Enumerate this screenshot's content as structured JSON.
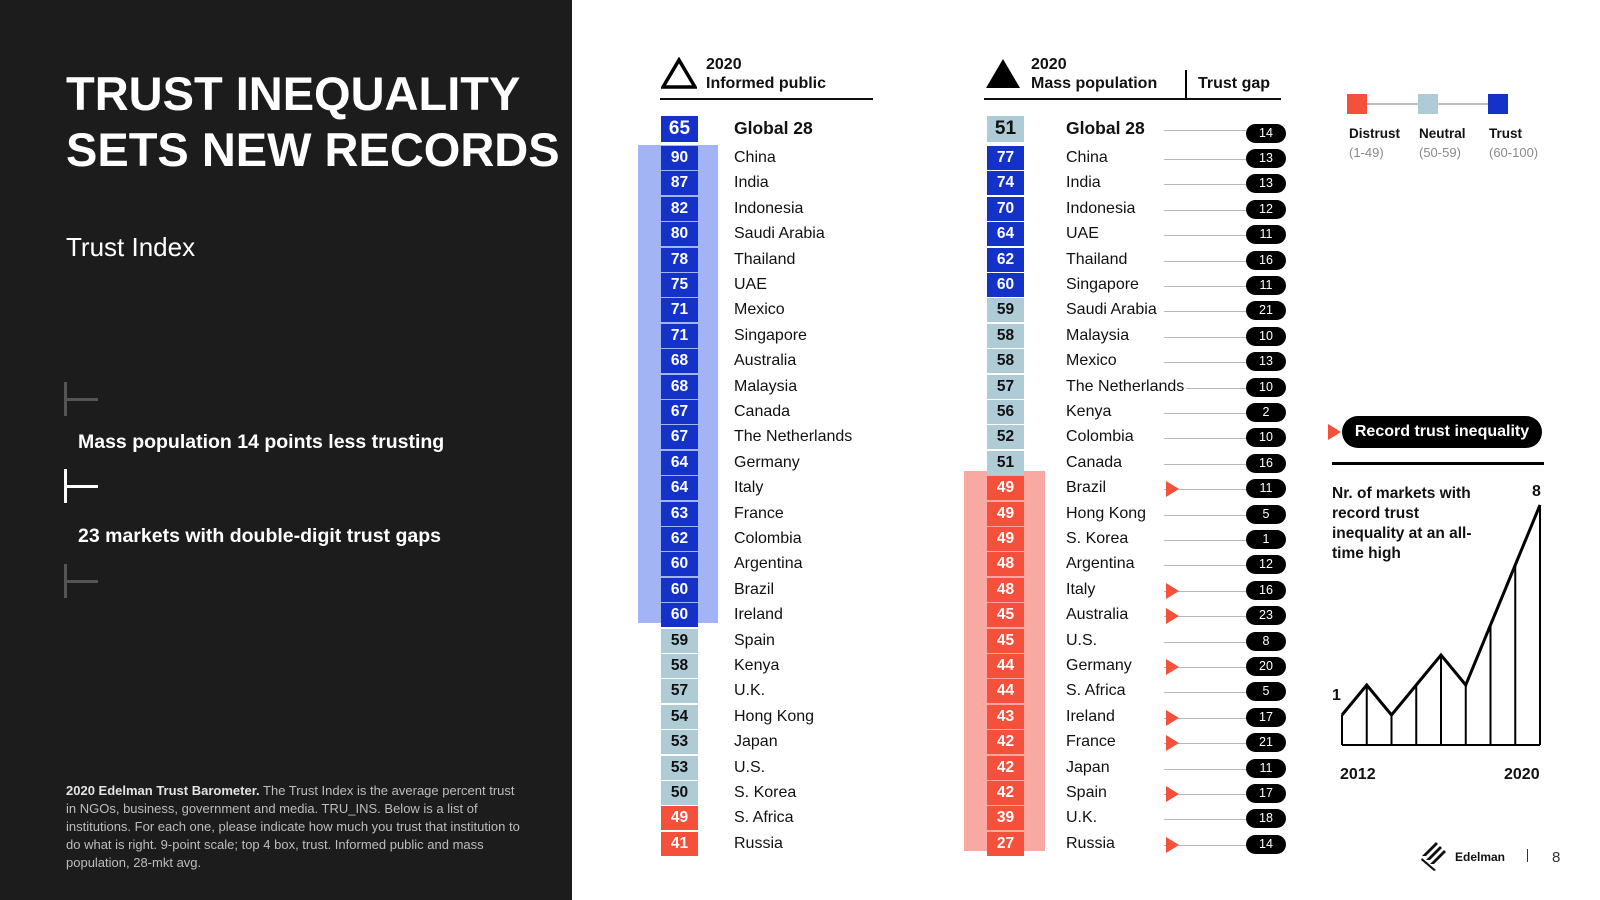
{
  "slide": {
    "title": "TRUST INEQUALITY SETS NEW RECORDS",
    "subtitle": "Trust Index",
    "stat1": "Mass population 14 points less trusting",
    "stat2": "23 markets with double-digit trust gaps",
    "footnote_bold": "2020 Edelman Trust Barometer.",
    "footnote_text": " The Trust Index is the average percent trust in NGOs, business, government and media. TRU_INS. Below is a list of institutions. For each one, please indicate how much you trust that institution to do what is right. 9-point scale; top 4 box, trust. Informed public and mass population, 28-mkt avg.",
    "brand": "Edelman",
    "page_number": "8"
  },
  "colors": {
    "distrust": "#f4503b",
    "neutral": "#aecbd6",
    "trust": "#1432c8",
    "trust_band": "#a3b4f5",
    "distrust_band": "#f8aaa2"
  },
  "legend": {
    "items": [
      {
        "label": "Distrust",
        "range": "(1-49)",
        "color": "#f4503b"
      },
      {
        "label": "Neutral",
        "range": "(50-59)",
        "color": "#aecbd6"
      },
      {
        "label": "Trust",
        "range": "(60-100)",
        "color": "#1432c8"
      }
    ]
  },
  "informed": {
    "year": "2020",
    "label": "Informed public",
    "global": {
      "name": "Global 28",
      "score": 65
    },
    "rows": [
      {
        "name": "China",
        "score": 90
      },
      {
        "name": "India",
        "score": 87
      },
      {
        "name": "Indonesia",
        "score": 82
      },
      {
        "name": "Saudi Arabia",
        "score": 80
      },
      {
        "name": "Thailand",
        "score": 78
      },
      {
        "name": "UAE",
        "score": 75
      },
      {
        "name": "Mexico",
        "score": 71
      },
      {
        "name": "Singapore",
        "score": 71
      },
      {
        "name": "Australia",
        "score": 68
      },
      {
        "name": "Malaysia",
        "score": 68
      },
      {
        "name": "Canada",
        "score": 67
      },
      {
        "name": "The Netherlands",
        "score": 67
      },
      {
        "name": "Germany",
        "score": 64
      },
      {
        "name": "Italy",
        "score": 64
      },
      {
        "name": "France",
        "score": 63
      },
      {
        "name": "Colombia",
        "score": 62
      },
      {
        "name": "Argentina",
        "score": 60
      },
      {
        "name": "Brazil",
        "score": 60
      },
      {
        "name": "Ireland",
        "score": 60
      },
      {
        "name": "Spain",
        "score": 59
      },
      {
        "name": "Kenya",
        "score": 58
      },
      {
        "name": "U.K.",
        "score": 57
      },
      {
        "name": "Hong Kong",
        "score": 54
      },
      {
        "name": "Japan",
        "score": 53
      },
      {
        "name": "U.S.",
        "score": 53
      },
      {
        "name": "S. Korea",
        "score": 50
      },
      {
        "name": "S. Africa",
        "score": 49
      },
      {
        "name": "Russia",
        "score": 41
      }
    ]
  },
  "mass": {
    "year": "2020",
    "label": "Mass population",
    "gap_label": "Trust gap",
    "global": {
      "name": "Global 28",
      "score": 51,
      "gap": 14
    },
    "rows": [
      {
        "name": "China",
        "score": 77,
        "gap": 13,
        "record": false
      },
      {
        "name": "India",
        "score": 74,
        "gap": 13,
        "record": false
      },
      {
        "name": "Indonesia",
        "score": 70,
        "gap": 12,
        "record": false
      },
      {
        "name": "UAE",
        "score": 64,
        "gap": 11,
        "record": false
      },
      {
        "name": "Thailand",
        "score": 62,
        "gap": 16,
        "record": false
      },
      {
        "name": "Singapore",
        "score": 60,
        "gap": 11,
        "record": false
      },
      {
        "name": "Saudi Arabia",
        "score": 59,
        "gap": 21,
        "record": false
      },
      {
        "name": "Malaysia",
        "score": 58,
        "gap": 10,
        "record": false
      },
      {
        "name": "Mexico",
        "score": 58,
        "gap": 13,
        "record": false
      },
      {
        "name": "The Netherlands",
        "score": 57,
        "gap": 10,
        "record": false
      },
      {
        "name": "Kenya",
        "score": 56,
        "gap": 2,
        "record": false
      },
      {
        "name": "Colombia",
        "score": 52,
        "gap": 10,
        "record": false
      },
      {
        "name": "Canada",
        "score": 51,
        "gap": 16,
        "record": false
      },
      {
        "name": "Brazil",
        "score": 49,
        "gap": 11,
        "record": true
      },
      {
        "name": "Hong Kong",
        "score": 49,
        "gap": 5,
        "record": false
      },
      {
        "name": "S. Korea",
        "score": 49,
        "gap": 1,
        "record": false
      },
      {
        "name": "Argentina",
        "score": 48,
        "gap": 12,
        "record": false
      },
      {
        "name": "Italy",
        "score": 48,
        "gap": 16,
        "record": true
      },
      {
        "name": "Australia",
        "score": 45,
        "gap": 23,
        "record": true
      },
      {
        "name": "U.S.",
        "score": 45,
        "gap": 8,
        "record": false
      },
      {
        "name": "Germany",
        "score": 44,
        "gap": 20,
        "record": true
      },
      {
        "name": "S. Africa",
        "score": 44,
        "gap": 5,
        "record": false
      },
      {
        "name": "Ireland",
        "score": 43,
        "gap": 17,
        "record": true
      },
      {
        "name": "France",
        "score": 42,
        "gap": 21,
        "record": true
      },
      {
        "name": "Japan",
        "score": 42,
        "gap": 11,
        "record": false
      },
      {
        "name": "Spain",
        "score": 42,
        "gap": 17,
        "record": true
      },
      {
        "name": "U.K.",
        "score": 39,
        "gap": 18,
        "record": false
      },
      {
        "name": "Russia",
        "score": 27,
        "gap": 14,
        "record": true
      }
    ]
  },
  "record": {
    "label": "Record trust inequality",
    "description": "Nr. of markets with record trust inequality at an all-time high"
  },
  "chart_data": {
    "type": "area",
    "x": [
      2012,
      2013,
      2014,
      2015,
      2016,
      2017,
      2018,
      2019,
      2020
    ],
    "values": [
      1,
      2,
      1,
      2,
      3,
      2,
      4,
      6,
      8
    ],
    "x_label_start": "2012",
    "x_label_end": "2020",
    "value_label_start": "1",
    "value_label_end": "8",
    "ylim": [
      0,
      8
    ]
  }
}
